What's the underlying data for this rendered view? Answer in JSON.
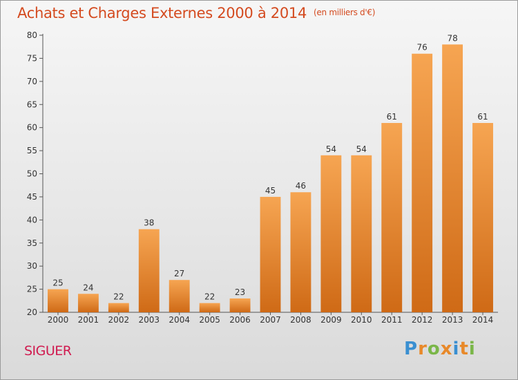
{
  "chart_data": {
    "type": "bar",
    "title": "Achats et Charges Externes 2000 à 2014",
    "subtitle": "(en milliers d'€)",
    "categories": [
      "2000",
      "2001",
      "2002",
      "2003",
      "2004",
      "2005",
      "2006",
      "2007",
      "2008",
      "2009",
      "2010",
      "2011",
      "2012",
      "2013",
      "2014"
    ],
    "values": [
      25,
      24,
      22,
      38,
      27,
      22,
      23,
      45,
      46,
      54,
      54,
      61,
      76,
      78,
      61
    ],
    "ylim": [
      20,
      80
    ],
    "yticks": [
      20,
      25,
      30,
      35,
      40,
      45,
      50,
      55,
      60,
      65,
      70,
      75,
      80
    ],
    "xlabel": "",
    "ylabel": "",
    "grid": false,
    "bar_color_top": "#f6a552",
    "bar_color_bottom": "#cf6a16"
  },
  "commune": "SIGUER",
  "logo": {
    "letters": [
      "P",
      "r",
      "o",
      "x",
      "i",
      "t",
      "i"
    ],
    "colors": [
      "#3a8fd1",
      "#e8892a",
      "#7ab648",
      "#e8892a",
      "#3a8fd1",
      "#e8892a",
      "#7ab648"
    ]
  }
}
